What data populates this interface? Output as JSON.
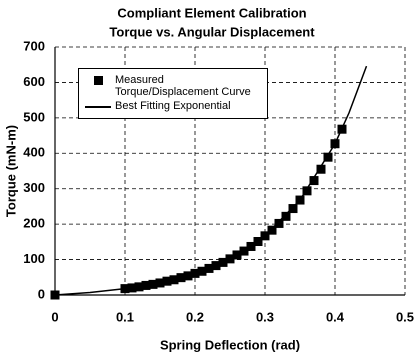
{
  "chart_data": {
    "type": "scatter",
    "title": "Compliant Element Calibration",
    "subtitle": "Torque vs. Angular Displacement",
    "x_label": "Spring Deflection (rad)",
    "y_label": "Torque (mN-m)",
    "xlim": [
      0,
      0.5
    ],
    "xticks": [
      0,
      0.1,
      0.2,
      0.3,
      0.4,
      0.5
    ],
    "ylim": [
      0,
      700
    ],
    "yticks": [
      0,
      100,
      200,
      300,
      400,
      500,
      600,
      700
    ],
    "grid": true,
    "grid_style": "dashed",
    "legend": "upper-left",
    "series": [
      {
        "name": "Measured Torque/Displacement Curve",
        "color": "#000000",
        "mode": "markers",
        "x": [
          0,
          0.1,
          0.11,
          0.12,
          0.13,
          0.14,
          0.15,
          0.16,
          0.17,
          0.18,
          0.19,
          0.2,
          0.21,
          0.22,
          0.23,
          0.24,
          0.25,
          0.26,
          0.27,
          0.28,
          0.29,
          0.3,
          0.31,
          0.32,
          0.33,
          0.34,
          0.35,
          0.36,
          0.37,
          0.38,
          0.39,
          0.4,
          0.41
        ],
        "values": [
          0,
          18,
          20,
          23,
          27,
          30,
          34,
          39,
          43,
          49,
          54,
          61,
          67,
          75,
          83,
          92,
          102,
          113,
          124,
          137,
          151,
          167,
          183,
          202,
          222,
          244,
          268,
          294,
          323,
          355,
          389,
          427,
          468
        ]
      },
      {
        "name": "Best Fitting Exponential",
        "color": "#000000",
        "mode": "line",
        "x": [
          0,
          0.05,
          0.1,
          0.15,
          0.2,
          0.25,
          0.3,
          0.35,
          0.4,
          0.42,
          0.445
        ],
        "values": [
          0,
          7,
          18,
          34,
          61,
          102,
          167,
          268,
          427,
          514,
          646
        ]
      }
    ]
  }
}
